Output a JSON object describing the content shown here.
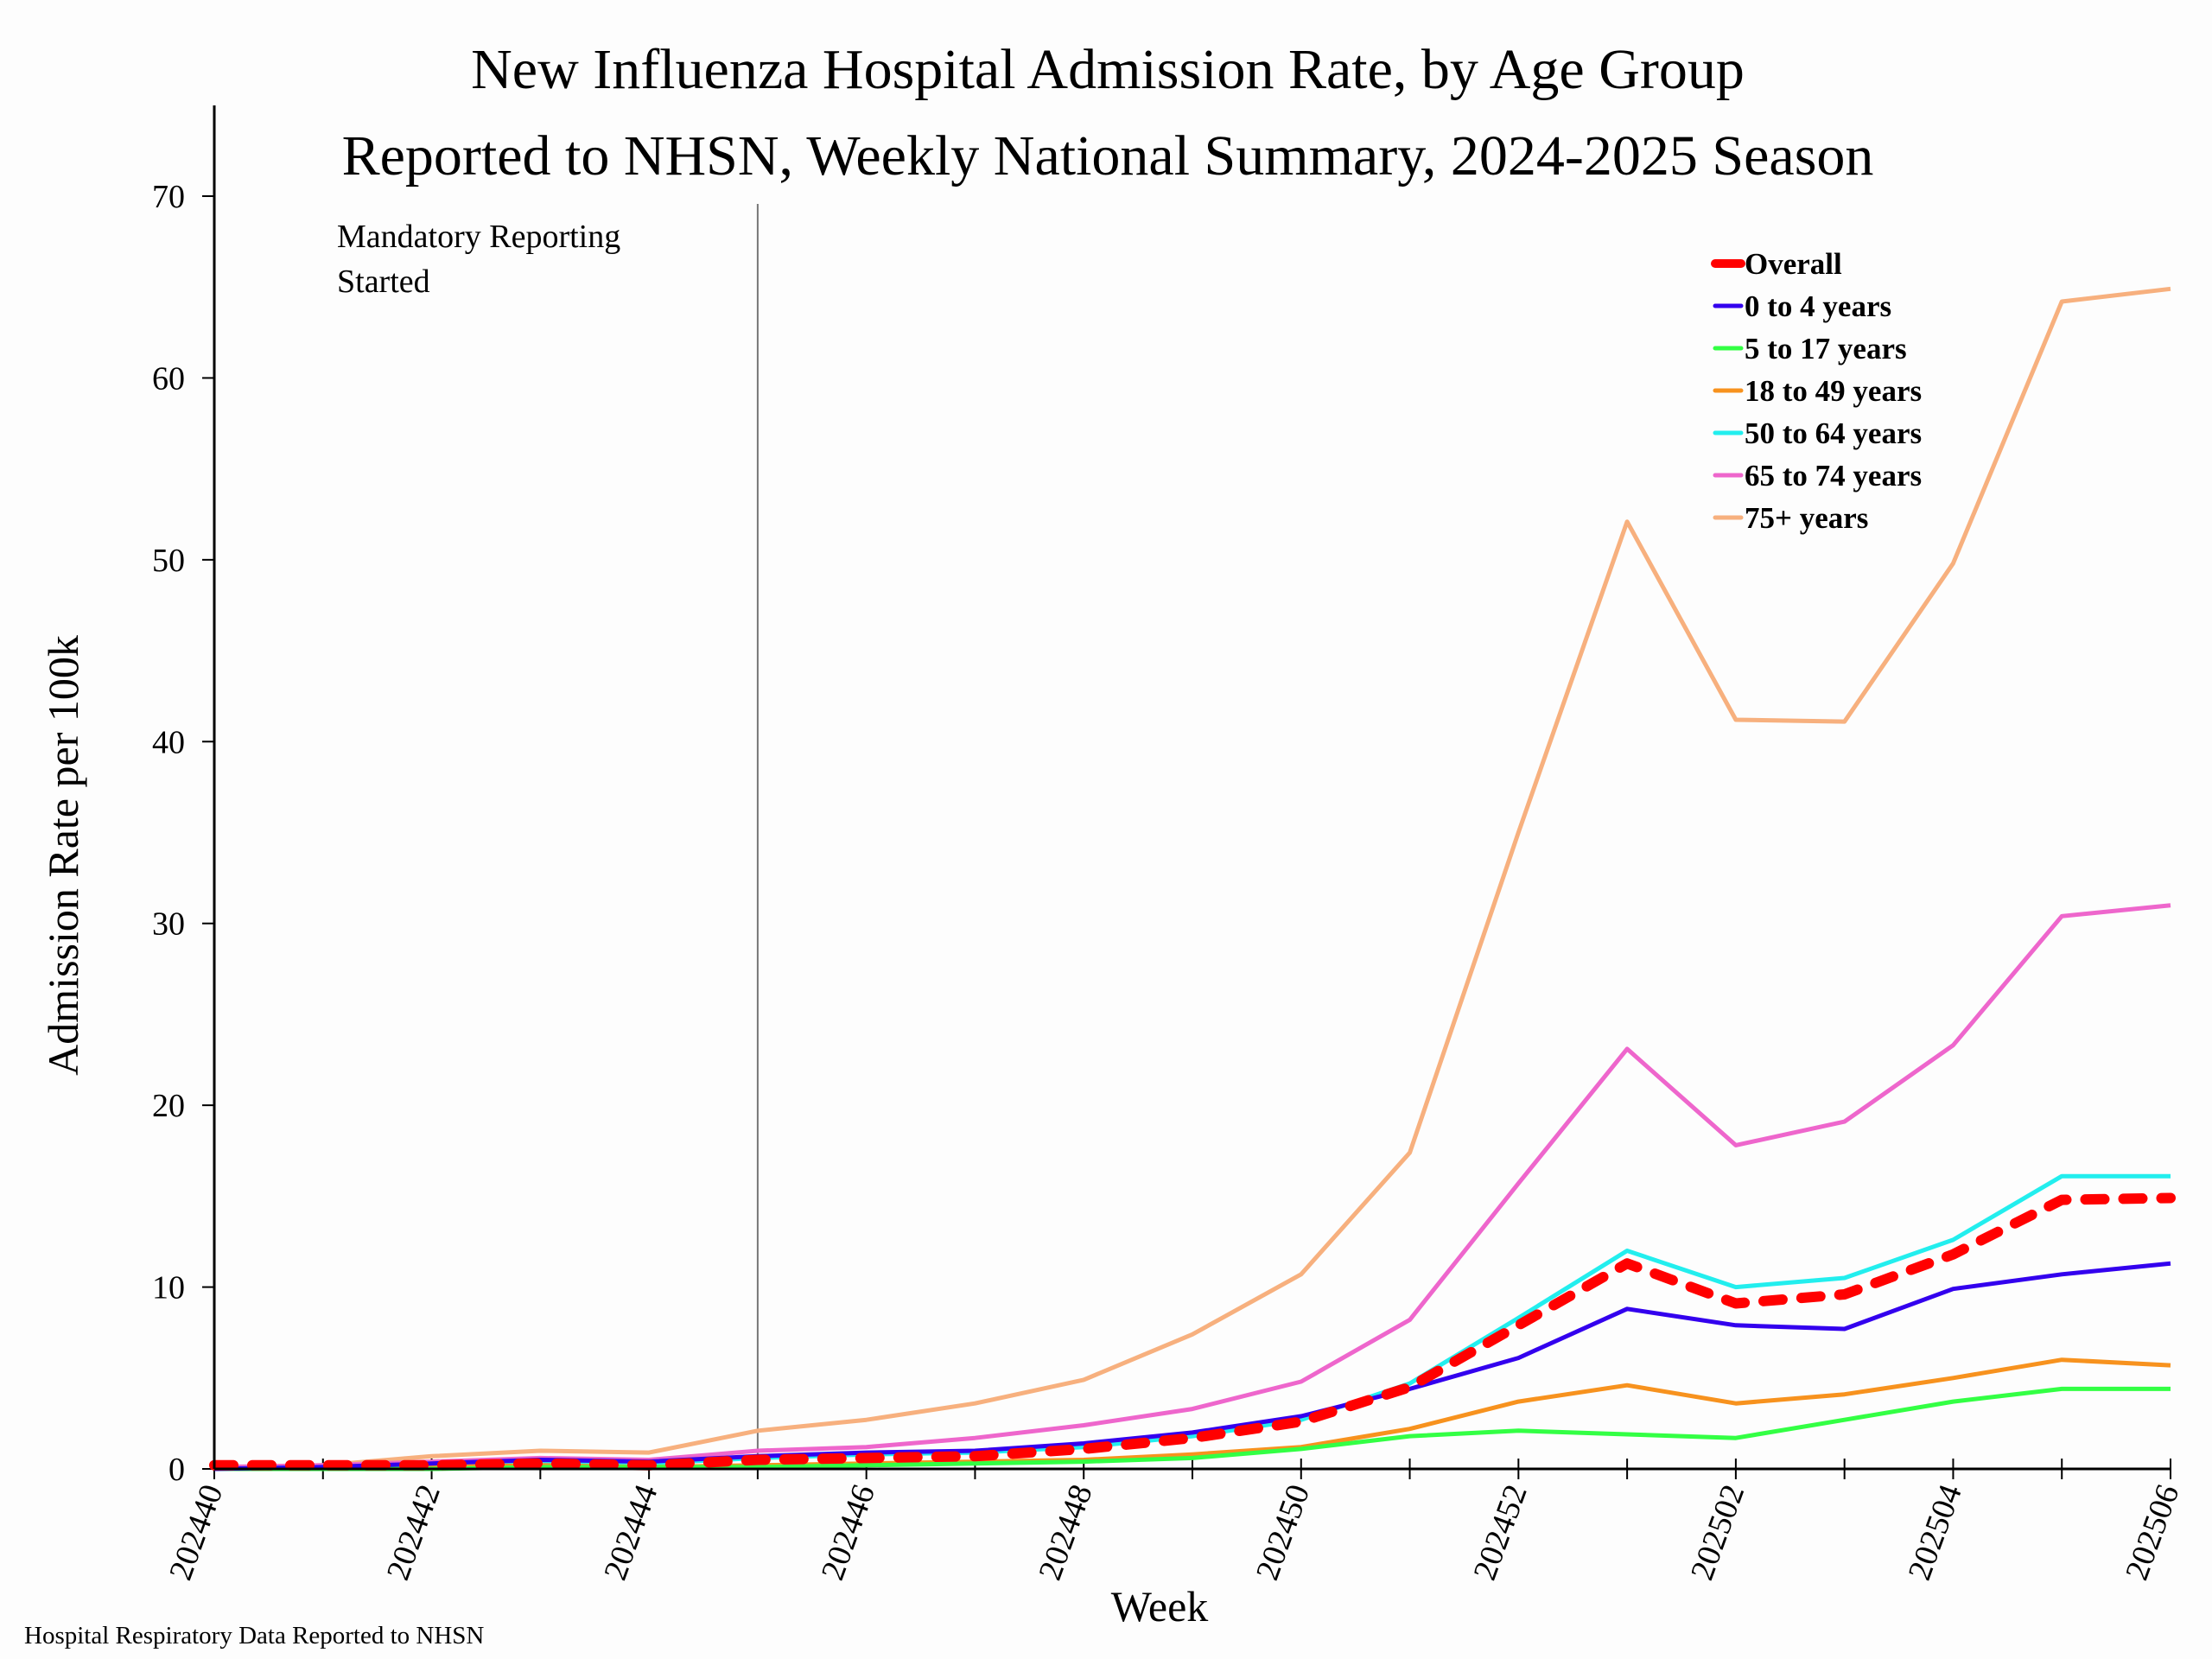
{
  "chart_data": {
    "type": "line",
    "title": "New Influenza Hospital Admission Rate, by Age Group",
    "subtitle": "Reported to NHSN, Weekly National Summary, 2024-2025 Season",
    "xlabel": "Week",
    "ylabel": "Admission Rate per 100k",
    "ylim": [
      0,
      75
    ],
    "yticks": [
      0,
      10,
      20,
      30,
      40,
      50,
      60,
      70
    ],
    "x": [
      "202440",
      "202441",
      "202442",
      "202443",
      "202444",
      "202445",
      "202446",
      "202447",
      "202448",
      "202449",
      "202450",
      "202451",
      "202452",
      "202501",
      "202502",
      "202503",
      "202504",
      "202505",
      "202506"
    ],
    "xtick_labels": [
      "202440",
      "202442",
      "202444",
      "202446",
      "202448",
      "202450",
      "202452",
      "202502",
      "202504",
      "202506"
    ],
    "grid": false,
    "legend_position": "top-right",
    "annotation": {
      "text_lines": [
        "Mandatory Reporting",
        "Started"
      ],
      "x": "202445"
    },
    "source_note": "Hospital Respiratory Data Reported to NHSN",
    "series": [
      {
        "name": "Overall",
        "color": "#ff0000",
        "dashed": true,
        "values": [
          0.2,
          0.2,
          0.2,
          0.3,
          0.2,
          0.5,
          0.6,
          0.7,
          1.1,
          1.7,
          2.6,
          4.5,
          7.9,
          11.3,
          9.1,
          9.6,
          11.8,
          14.8,
          14.9
        ]
      },
      {
        "name": "0 to 4 years",
        "color": "#3300ee",
        "dashed": false,
        "values": [
          0.0,
          0.1,
          0.3,
          0.5,
          0.4,
          0.7,
          0.9,
          1.0,
          1.4,
          2.0,
          2.9,
          4.4,
          6.1,
          8.8,
          7.9,
          7.7,
          9.9,
          10.7,
          11.3
        ]
      },
      {
        "name": "5 to 17 years",
        "color": "#33ff44",
        "dashed": false,
        "values": [
          0.0,
          0.0,
          0.0,
          0.1,
          0.1,
          0.1,
          0.2,
          0.3,
          0.4,
          0.6,
          1.1,
          1.8,
          2.1,
          1.9,
          1.7,
          2.7,
          3.7,
          4.4,
          4.4
        ]
      },
      {
        "name": "18 to 49 years",
        "color": "#f7921e",
        "dashed": false,
        "values": [
          0.0,
          0.0,
          0.1,
          0.2,
          0.1,
          0.2,
          0.3,
          0.4,
          0.5,
          0.8,
          1.2,
          2.2,
          3.7,
          4.6,
          3.6,
          4.1,
          5.0,
          6.0,
          5.7
        ]
      },
      {
        "name": "50 to 64 years",
        "color": "#22eeee",
        "dashed": false,
        "values": [
          0.0,
          0.1,
          0.2,
          0.4,
          0.3,
          0.6,
          0.8,
          0.9,
          1.2,
          1.8,
          2.7,
          4.7,
          8.3,
          12.0,
          10.0,
          10.5,
          12.6,
          16.1,
          16.1
        ]
      },
      {
        "name": "65 to 74 years",
        "color": "#ee66cc",
        "dashed": false,
        "values": [
          0.1,
          0.2,
          0.4,
          0.6,
          0.5,
          1.0,
          1.2,
          1.7,
          2.4,
          3.3,
          4.8,
          8.2,
          15.7,
          23.1,
          17.8,
          19.1,
          23.3,
          30.4,
          31.0
        ]
      },
      {
        "name": "75+ years",
        "color": "#f7b07e",
        "dashed": false,
        "values": [
          0.0,
          0.2,
          0.7,
          1.0,
          0.9,
          2.1,
          2.7,
          3.6,
          4.9,
          7.4,
          10.7,
          17.4,
          35.0,
          52.1,
          41.2,
          41.1,
          49.8,
          64.2,
          64.9
        ]
      }
    ]
  }
}
